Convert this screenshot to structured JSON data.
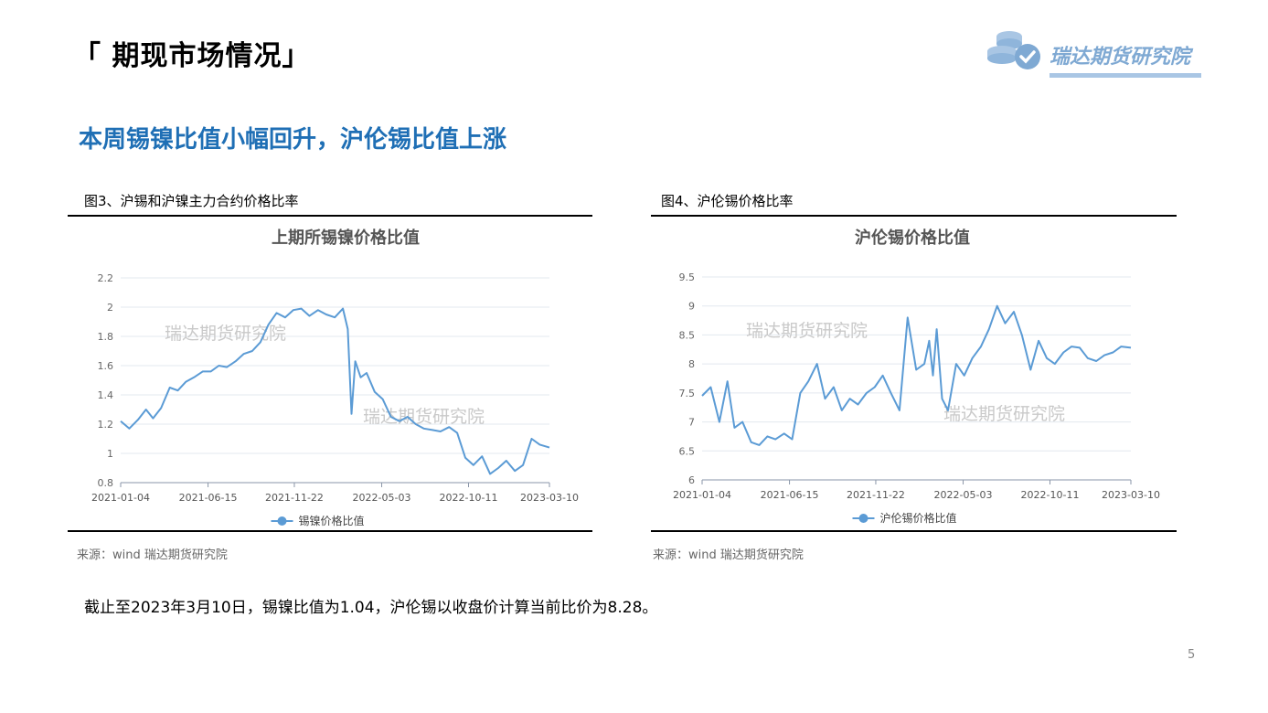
{
  "page": {
    "title": "「 期现市场情况」",
    "subtitle": "本周锡镍比值小幅回升，沪伦锡比值上涨",
    "footnote": "截止至2023年3月10日，锡镍比值为1.04，沪伦锡以收盘价计算当前比价为8.28。",
    "page_number": "5",
    "logo_text": "瑞达期货研究院",
    "brand_color": "#7fa9d3",
    "accent_color": "#1f6fb5"
  },
  "figures": [
    {
      "caption": "图3、沪锡和沪镍主力合约价格比率",
      "source": "来源：wind   瑞达期货研究院",
      "watermarks": [
        "瑞达期货研究院",
        "瑞达期货研究院"
      ]
    },
    {
      "caption": "图4、沪伦锡价格比率",
      "source": "来源：wind   瑞达期货研究院",
      "watermarks": [
        "瑞达期货研究院",
        "瑞达期货研究院"
      ]
    }
  ],
  "chart_data": [
    {
      "type": "line",
      "title": "上期所锡镍价格比值",
      "xlabel": "",
      "ylabel": "",
      "x_ticks": [
        "2021-01-04",
        "2021-06-15",
        "2021-11-22",
        "2022-05-03",
        "2022-10-11",
        "2023-03-10"
      ],
      "y_ticks": [
        "0.8",
        "1",
        "1.2",
        "1.4",
        "1.6",
        "1.8",
        "2",
        "2.2"
      ],
      "ylim": [
        0.8,
        2.2
      ],
      "grid": true,
      "legend": "bottom-center",
      "color": "#5b9bd5",
      "series": [
        {
          "name": "锡镍价格比值",
          "x": [
            "2021-01-04",
            "2021-01-20",
            "2021-02-05",
            "2021-02-20",
            "2021-03-05",
            "2021-03-20",
            "2021-04-05",
            "2021-04-20",
            "2021-05-05",
            "2021-05-20",
            "2021-06-05",
            "2021-06-20",
            "2021-07-05",
            "2021-07-20",
            "2021-08-05",
            "2021-08-20",
            "2021-09-05",
            "2021-09-20",
            "2021-10-05",
            "2021-10-20",
            "2021-11-05",
            "2021-11-20",
            "2021-12-05",
            "2021-12-20",
            "2022-01-05",
            "2022-01-20",
            "2022-02-05",
            "2022-02-20",
            "2022-03-01",
            "2022-03-08",
            "2022-03-15",
            "2022-03-25",
            "2022-04-05",
            "2022-04-20",
            "2022-05-05",
            "2022-05-20",
            "2022-06-05",
            "2022-06-20",
            "2022-07-05",
            "2022-07-20",
            "2022-08-05",
            "2022-08-20",
            "2022-09-05",
            "2022-09-20",
            "2022-10-05",
            "2022-10-20",
            "2022-11-05",
            "2022-11-20",
            "2022-12-05",
            "2022-12-20",
            "2023-01-05",
            "2023-01-20",
            "2023-02-05",
            "2023-02-20",
            "2023-03-10"
          ],
          "values": [
            1.22,
            1.17,
            1.23,
            1.3,
            1.24,
            1.31,
            1.45,
            1.43,
            1.49,
            1.52,
            1.56,
            1.56,
            1.6,
            1.59,
            1.63,
            1.68,
            1.7,
            1.76,
            1.88,
            1.96,
            1.93,
            1.98,
            1.99,
            1.94,
            1.98,
            1.95,
            1.93,
            1.99,
            1.85,
            1.27,
            1.63,
            1.52,
            1.55,
            1.42,
            1.37,
            1.25,
            1.22,
            1.25,
            1.2,
            1.17,
            1.16,
            1.15,
            1.18,
            1.14,
            0.97,
            0.92,
            0.98,
            0.86,
            0.9,
            0.95,
            0.88,
            0.92,
            1.1,
            1.06,
            1.04
          ]
        }
      ]
    },
    {
      "type": "line",
      "title": "沪伦锡价格比值",
      "xlabel": "",
      "ylabel": "",
      "x_ticks": [
        "2021-01-04",
        "2021-06-15",
        "2021-11-22",
        "2022-05-03",
        "2022-10-11",
        "2023-03-10"
      ],
      "y_ticks": [
        "6",
        "6.5",
        "7",
        "7.5",
        "8",
        "8.5",
        "9",
        "9.5"
      ],
      "ylim": [
        6,
        9.5
      ],
      "grid": true,
      "legend": "bottom-center",
      "color": "#5b9bd5",
      "series": [
        {
          "name": "沪伦锡价格比值",
          "x": [
            "2021-01-04",
            "2021-01-20",
            "2021-02-05",
            "2021-02-20",
            "2021-03-05",
            "2021-03-20",
            "2021-04-05",
            "2021-04-20",
            "2021-05-05",
            "2021-05-20",
            "2021-06-05",
            "2021-06-20",
            "2021-07-05",
            "2021-07-20",
            "2021-08-05",
            "2021-08-20",
            "2021-09-05",
            "2021-09-20",
            "2021-10-05",
            "2021-10-20",
            "2021-11-05",
            "2021-11-20",
            "2021-12-05",
            "2021-12-20",
            "2022-01-05",
            "2022-01-20",
            "2022-02-05",
            "2022-02-20",
            "2022-03-01",
            "2022-03-08",
            "2022-03-15",
            "2022-03-25",
            "2022-04-05",
            "2022-04-20",
            "2022-05-05",
            "2022-05-20",
            "2022-06-05",
            "2022-06-20",
            "2022-07-05",
            "2022-07-20",
            "2022-08-05",
            "2022-08-20",
            "2022-09-05",
            "2022-09-20",
            "2022-10-05",
            "2022-10-20",
            "2022-11-05",
            "2022-11-20",
            "2022-12-05",
            "2022-12-20",
            "2023-01-05",
            "2023-01-20",
            "2023-02-05",
            "2023-02-20",
            "2023-03-10"
          ],
          "values": [
            7.45,
            7.6,
            7.0,
            7.7,
            6.9,
            7.0,
            6.65,
            6.6,
            6.75,
            6.7,
            6.8,
            6.7,
            7.5,
            7.7,
            8.0,
            7.4,
            7.6,
            7.2,
            7.4,
            7.3,
            7.5,
            7.6,
            7.8,
            7.5,
            7.2,
            8.8,
            7.9,
            8.0,
            8.4,
            7.8,
            8.6,
            7.4,
            7.2,
            8.0,
            7.8,
            8.1,
            8.3,
            8.6,
            9.0,
            8.7,
            8.9,
            8.5,
            7.9,
            8.4,
            8.1,
            8.0,
            8.2,
            8.3,
            8.28,
            8.1,
            8.05,
            8.15,
            8.2,
            8.3,
            8.28
          ]
        }
      ]
    }
  ]
}
